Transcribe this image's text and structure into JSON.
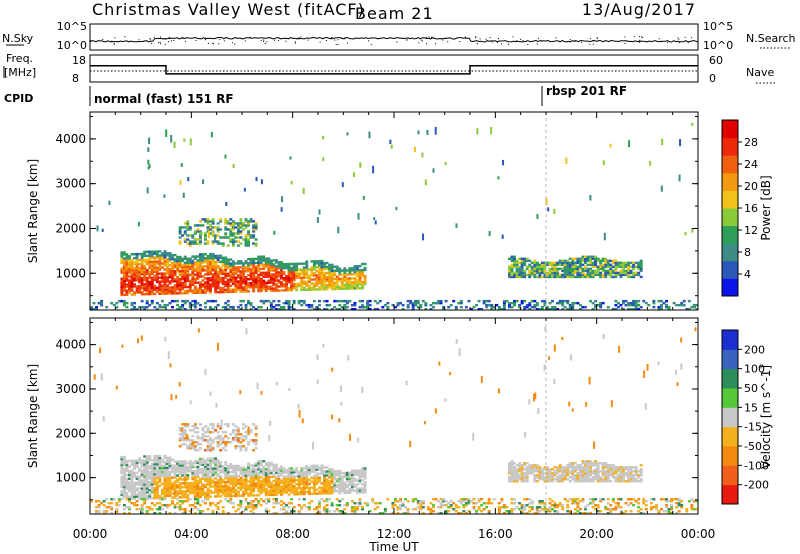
{
  "header": {
    "title": "Christmas Valley West (fitACF)",
    "beam": "Beam 21",
    "date": "13/Aug/2017"
  },
  "nsky_panel": {
    "left_label": "N.Sky",
    "left_ticks": [
      "10^5",
      "10^0"
    ],
    "right_label": "N.Search",
    "right_ticks": [
      "10^5",
      "10^0"
    ]
  },
  "freq_panel": {
    "left_label_1": "Freq.",
    "left_label_2": "[MHz]",
    "left_ticks": [
      "18",
      "8"
    ],
    "right_label": "Nave",
    "right_ticks": [
      "60",
      "0"
    ]
  },
  "cpid": {
    "label": "CPID",
    "modes": [
      {
        "name": "normal (fast) 151 RF",
        "start_hour": 0
      },
      {
        "name": "rbsp 201 RF",
        "start_hour": 18
      }
    ]
  },
  "x_axis": {
    "label": "Time UT",
    "ticks": [
      "00:00",
      "04:00",
      "08:00",
      "12:00",
      "16:00",
      "20:00",
      "00:00"
    ],
    "range_hours": [
      0,
      24
    ]
  },
  "power_panel": {
    "ylabel": "Slant Range [km]",
    "yticks": [
      "1000",
      "2000",
      "3000",
      "4000"
    ],
    "colorbar_label": "Power [dB]",
    "colorbar_ticks": [
      "4",
      "8",
      "12",
      "16",
      "20",
      "24",
      "28"
    ],
    "colors": [
      "#0a14e8",
      "#2a57b8",
      "#3d8c86",
      "#2f9e58",
      "#8acb3a",
      "#f2c21a",
      "#f39a10",
      "#f06010",
      "#ec2a0a",
      "#e00000"
    ]
  },
  "velocity_panel": {
    "ylabel": "Slant Range [km]",
    "yticks": [
      "1000",
      "2000",
      "3000",
      "4000"
    ],
    "colorbar_label": "Velocity [m s^-1]",
    "colorbar_ticks": [
      "200",
      "100",
      "50",
      "15",
      "-15",
      "-50",
      "-100",
      "-200"
    ],
    "colors": [
      "#1b2fd0",
      "#3a63c0",
      "#2e8e5a",
      "#55c83a",
      "#c8c8c8",
      "#f5b01e",
      "#f38a12",
      "#f0601a",
      "#e81a10"
    ]
  },
  "chart_data": [
    {
      "type": "heatmap",
      "title": "Power",
      "xlabel": "Time UT",
      "ylabel": "Slant Range [km]",
      "xlim": [
        0,
        24
      ],
      "ylim": [
        180,
        4600
      ],
      "colorbar": {
        "label": "Power [dB]",
        "range": [
          0,
          32
        ]
      },
      "regions": [
        {
          "t": [
            1.2,
            10.8
          ],
          "r": [
            500,
            1500
          ],
          "peak_db": 28
        },
        {
          "t": [
            3.5,
            6.5
          ],
          "r": [
            1600,
            2200
          ],
          "peak_db": 14
        },
        {
          "t": [
            16.5,
            21.8
          ],
          "r": [
            900,
            1350
          ],
          "peak_db": 14
        },
        {
          "t": [
            0,
            24
          ],
          "r": [
            180,
            400
          ],
          "peak_db": 8
        }
      ]
    },
    {
      "type": "heatmap",
      "title": "Velocity",
      "xlabel": "Time UT",
      "ylabel": "Slant Range [km]",
      "xlim": [
        0,
        24
      ],
      "ylim": [
        180,
        4600
      ],
      "colorbar": {
        "label": "Velocity [m s^-1]",
        "range": [
          -200,
          200
        ]
      },
      "regions": [
        {
          "t": [
            1.2,
            10.8
          ],
          "r": [
            500,
            1500
          ],
          "velocity": -40
        },
        {
          "t": [
            3.5,
            6.5
          ],
          "r": [
            1600,
            2200
          ],
          "velocity": 0
        },
        {
          "t": [
            16.5,
            21.8
          ],
          "r": [
            900,
            1350
          ],
          "velocity": 0
        },
        {
          "t": [
            0,
            24
          ],
          "r": [
            180,
            500
          ],
          "velocity": -60
        }
      ]
    },
    {
      "type": "line",
      "title": "Freq.",
      "xlim": [
        0,
        24
      ],
      "ylim": [
        8,
        18
      ],
      "series": [
        {
          "x": [
            0,
            3,
            3,
            15,
            15,
            24
          ],
          "values": [
            14,
            14,
            11,
            11,
            14,
            14
          ]
        }
      ]
    }
  ]
}
